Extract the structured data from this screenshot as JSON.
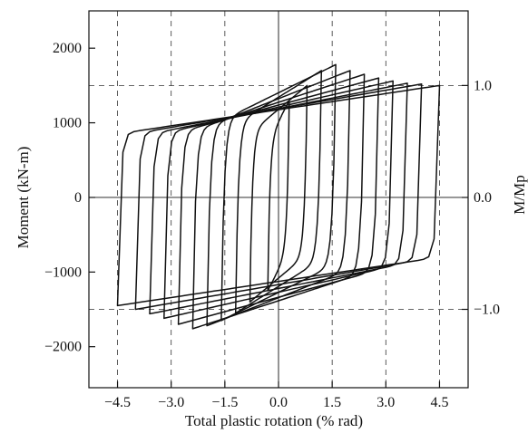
{
  "chart_data": {
    "type": "line",
    "title": "",
    "xlabel": "Total plastic rotation (% rad)",
    "ylabel": "Moment (kN-m)",
    "y2label": "M/Mp",
    "xlim": [
      -5.3,
      5.3
    ],
    "ylim": [
      -2550,
      2500
    ],
    "y2_per_unit": 1500,
    "xticks": [
      -4.5,
      -3.0,
      -1.5,
      0.0,
      1.5,
      3.0,
      4.5
    ],
    "xtick_labels": [
      "−4.5",
      "−3.0",
      "−1.5",
      "0.0",
      "1.5",
      "3.0",
      "4.5"
    ],
    "yticks": [
      -2000,
      -1000,
      0,
      1000,
      2000
    ],
    "ytick_labels": [
      "−2000",
      "−1000",
      "0",
      "1000",
      "2000"
    ],
    "y2ticks": [
      -1.0,
      0.0,
      1.0
    ],
    "y2tick_labels": [
      "−1.0",
      "0.0",
      "1.0"
    ],
    "grid": "dashed",
    "legend": "none",
    "series": [
      {
        "theta": 0.3,
        "pos": 1300,
        "neg": -1250
      },
      {
        "theta": 0.8,
        "pos": 1500,
        "neg": -1400
      },
      {
        "theta": 1.2,
        "pos": 1700,
        "neg": -1550
      },
      {
        "theta": 1.6,
        "pos": 1780,
        "neg": -1650
      },
      {
        "theta": 2.0,
        "pos": 1700,
        "neg": -1720
      },
      {
        "theta": 2.4,
        "pos": 1650,
        "neg": -1760
      },
      {
        "theta": 2.8,
        "pos": 1600,
        "neg": -1700
      },
      {
        "theta": 3.2,
        "pos": 1560,
        "neg": -1620
      },
      {
        "theta": 3.6,
        "pos": 1530,
        "neg": -1560
      },
      {
        "theta": 4.0,
        "pos": 1520,
        "neg": -1500
      },
      {
        "theta": 4.5,
        "pos": 1500,
        "neg": -1450
      }
    ]
  }
}
